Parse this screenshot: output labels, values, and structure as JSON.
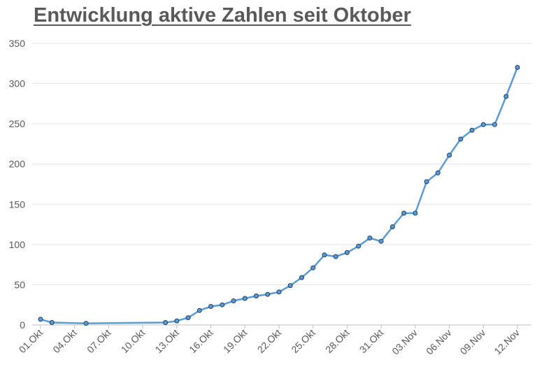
{
  "chart_data": {
    "type": "line",
    "title": "Entwicklung aktive Zahlen seit Oktober",
    "xlabel": "",
    "ylabel": "",
    "ylim": [
      0,
      350
    ],
    "y_ticks": [
      "0",
      "50",
      "100",
      "150",
      "200",
      "250",
      "300",
      "350"
    ],
    "x_tick_labels": [
      "01.Okt",
      "04.Okt",
      "07.Okt",
      "10.Okt",
      "13.Okt",
      "16.Okt",
      "19.Okt",
      "22.Okt",
      "25.Okt",
      "28.Okt",
      "31.Okt",
      "03.Nov",
      "06.Nov",
      "09.Nov",
      "12.Nov"
    ],
    "x_range": [
      "01.Okt",
      "12.Nov"
    ],
    "grid": "horizontal",
    "legend": "none",
    "line_color": "#5b9bd5",
    "marker_color": "#2e75b6",
    "series": [
      {
        "x": [
          "01.Okt",
          "02.Okt",
          "05.Okt",
          "12.Okt",
          "13.Okt",
          "14.Okt",
          "15.Okt",
          "16.Okt",
          "17.Okt",
          "18.Okt",
          "19.Okt",
          "20.Okt",
          "21.Okt",
          "22.Okt",
          "23.Okt",
          "24.Okt",
          "25.Okt",
          "26.Okt",
          "27.Okt",
          "28.Okt",
          "29.Okt",
          "30.Okt",
          "31.Okt",
          "01.Nov",
          "02.Nov",
          "03.Nov",
          "04.Nov",
          "05.Nov",
          "06.Nov",
          "07.Nov",
          "08.Nov",
          "09.Nov",
          "10.Nov",
          "11.Nov",
          "12.Nov"
        ],
        "values": [
          7,
          3,
          2,
          3,
          5,
          9,
          18,
          23,
          25,
          30,
          33,
          36,
          38,
          41,
          49,
          59,
          71,
          87,
          85,
          90,
          98,
          108,
          104,
          122,
          139,
          139,
          178,
          189,
          211,
          231,
          242,
          249,
          249,
          284,
          320
        ]
      }
    ]
  }
}
